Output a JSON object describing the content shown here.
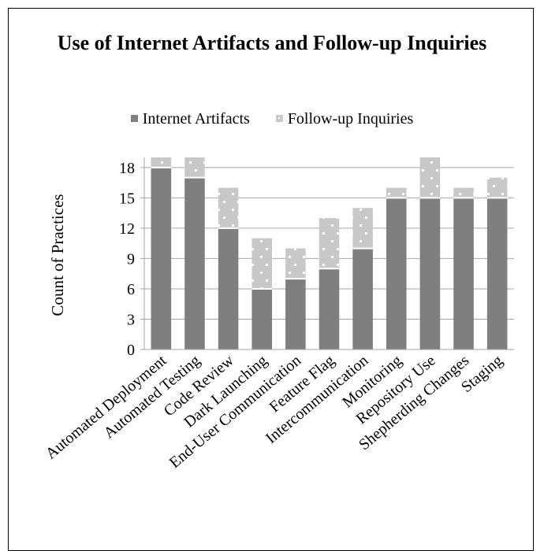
{
  "chart_data": {
    "type": "bar",
    "stacked": true,
    "title": "Use of Internet Artifacts and Follow-up Inquiries",
    "ylabel": "Count of Practices",
    "xlabel": "",
    "ylim": [
      0,
      19
    ],
    "yticks": [
      0,
      3,
      6,
      9,
      12,
      15,
      18
    ],
    "grid": true,
    "legend_position": "top",
    "categories": [
      "Automated Deployment",
      "Automated Testing",
      "Code Review",
      "Dark Launching",
      "End-User Communication",
      "Feature Flag",
      "Intercommunication",
      "Monitoring",
      "Repository Use",
      "Shepherding Changes",
      "Staging"
    ],
    "series": [
      {
        "name": "Internet Artifacts",
        "color": "#7f7f7f",
        "values": [
          18,
          17,
          12,
          6,
          7,
          8,
          10,
          15,
          15,
          15,
          15
        ]
      },
      {
        "name": "Follow-up Inquiries",
        "color": "#c8c8c8",
        "values": [
          1,
          2,
          4,
          5,
          3,
          5,
          4,
          1,
          4,
          1,
          2
        ]
      }
    ]
  }
}
